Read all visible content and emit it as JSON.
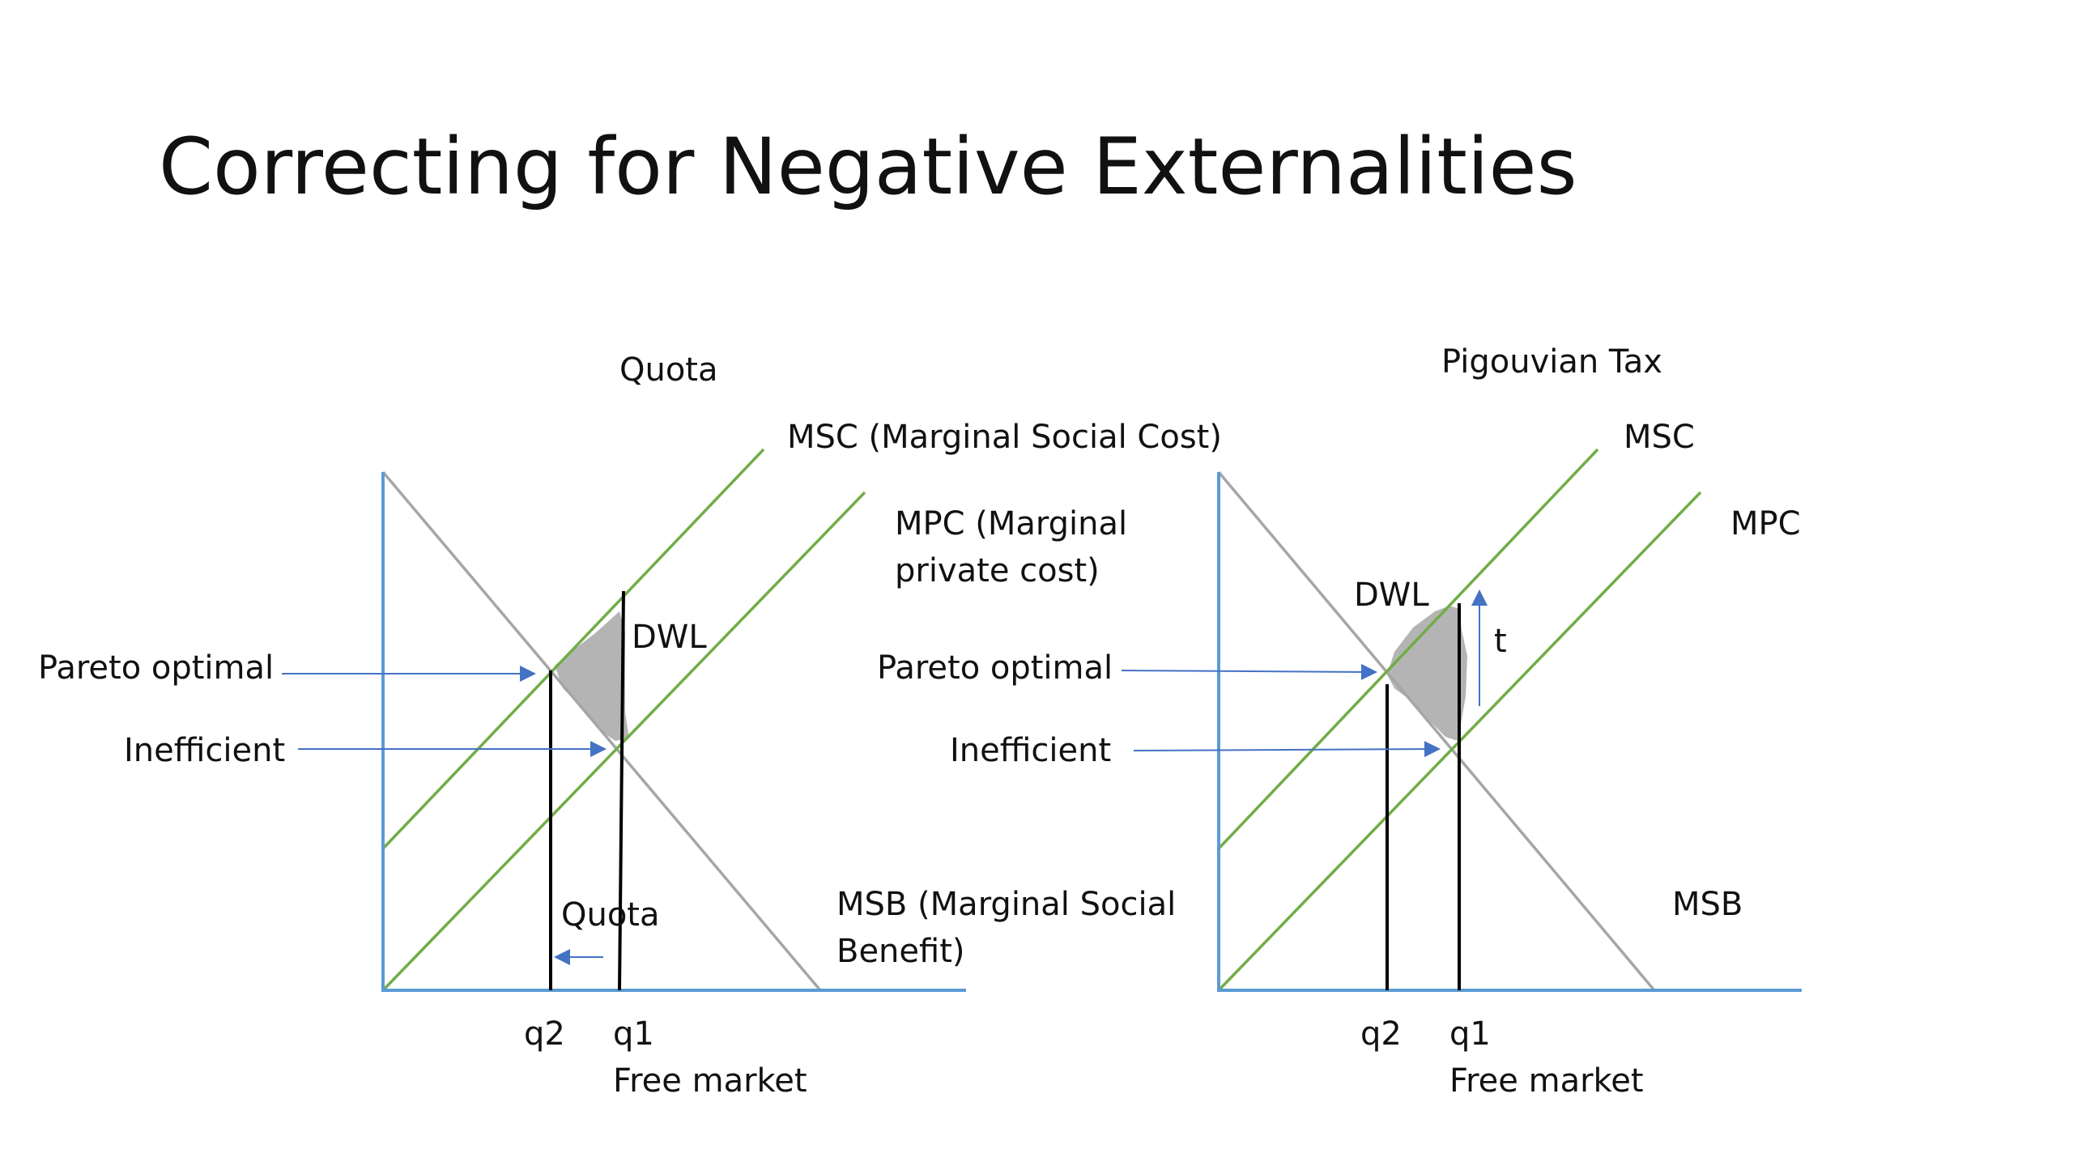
{
  "slide": {
    "title": "Correcting for Negative Externalities"
  },
  "left_panel": {
    "heading": "Quota",
    "msc_label": "MSC (Marginal Social Cost)",
    "mpc_label_line1": "MPC (Marginal",
    "mpc_label_line2": "private cost)",
    "msb_label_line1": "MSB (Marginal Social",
    "msb_label_line2": "Benefit)",
    "dwl_label": "DWL",
    "pareto_label": "Pareto optimal",
    "inefficient_label": "Inefficient",
    "quota_label": "Quota",
    "q2_label": "q2",
    "q1_label": "q1",
    "free_market_label": "Free market"
  },
  "right_panel": {
    "heading": "Pigouvian Tax",
    "msc_label": "MSC",
    "mpc_label": "MPC",
    "msb_label": "MSB",
    "dwl_label": "DWL",
    "tax_label": "t",
    "pareto_label": "Pareto optimal",
    "inefficient_label": "Inefficient",
    "q2_label": "q2",
    "q1_label": "q1",
    "free_market_label": "Free market"
  },
  "colors": {
    "axis": "#5b9bd5",
    "cost_curves": "#70ad47",
    "benefit_curve": "#a6a6a6",
    "dwl_fill": "#b4b4b4",
    "arrow": "#4472c4",
    "quantity_lines": "#000000"
  }
}
